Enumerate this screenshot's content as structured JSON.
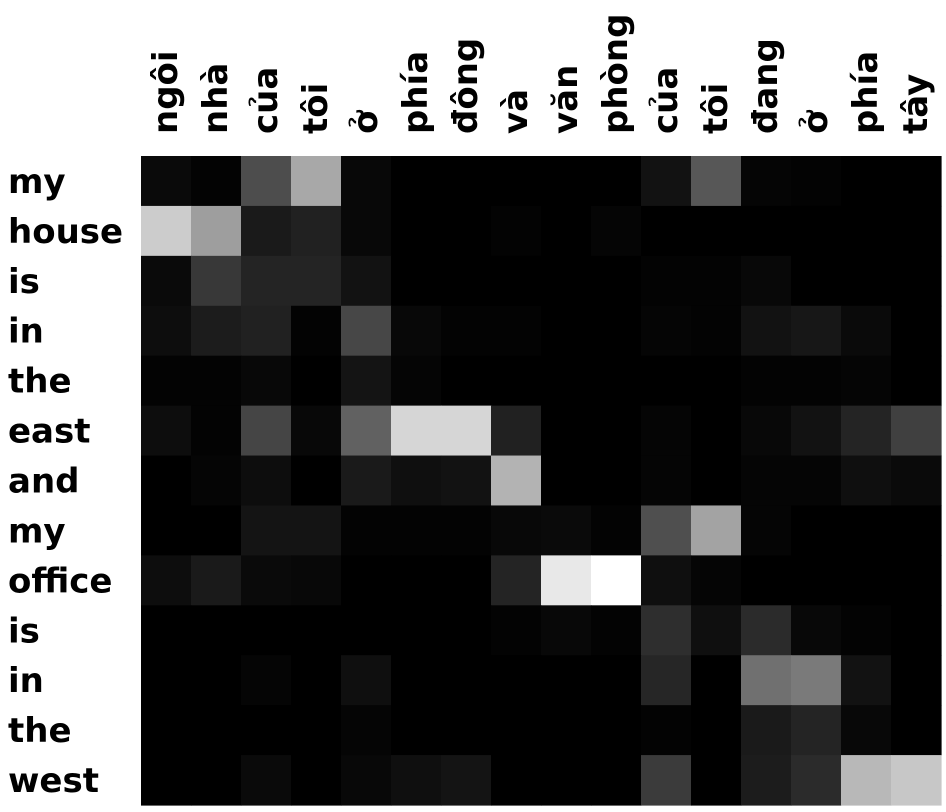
{
  "chart_data": {
    "type": "heatmap",
    "x_labels": [
      "ngôi",
      "nhà",
      "của",
      "tôi",
      "ở",
      "phía",
      "đông",
      "và",
      "văn",
      "phòng",
      "của",
      "tôi",
      "đang",
      "ở",
      "phía",
      "tây"
    ],
    "y_labels": [
      "my",
      "house",
      "is",
      "in",
      "the",
      "east",
      "and",
      "my",
      "office",
      "is",
      "in",
      "the",
      "west"
    ],
    "values": [
      [
        0.04,
        0.01,
        0.3,
        0.66,
        0.03,
        0.0,
        0.0,
        0.0,
        0.0,
        0.0,
        0.07,
        0.34,
        0.02,
        0.01,
        0.0,
        0.0
      ],
      [
        0.8,
        0.62,
        0.1,
        0.13,
        0.03,
        0.0,
        0.0,
        0.01,
        0.0,
        0.02,
        0.0,
        0.0,
        0.0,
        0.0,
        0.0,
        0.0
      ],
      [
        0.04,
        0.22,
        0.14,
        0.14,
        0.07,
        0.0,
        0.0,
        0.0,
        0.0,
        0.0,
        0.01,
        0.01,
        0.03,
        0.0,
        0.0,
        0.0
      ],
      [
        0.05,
        0.11,
        0.13,
        0.01,
        0.28,
        0.03,
        0.01,
        0.01,
        0.0,
        0.0,
        0.02,
        0.01,
        0.07,
        0.09,
        0.04,
        0.0
      ],
      [
        0.01,
        0.01,
        0.03,
        0.0,
        0.08,
        0.02,
        0.0,
        0.0,
        0.0,
        0.0,
        0.0,
        0.0,
        0.01,
        0.01,
        0.02,
        0.0
      ],
      [
        0.05,
        0.01,
        0.27,
        0.03,
        0.38,
        0.84,
        0.84,
        0.13,
        0.0,
        0.0,
        0.02,
        0.0,
        0.03,
        0.07,
        0.14,
        0.25
      ],
      [
        0.0,
        0.02,
        0.05,
        0.0,
        0.1,
        0.06,
        0.07,
        0.7,
        0.0,
        0.0,
        0.02,
        0.0,
        0.02,
        0.02,
        0.06,
        0.04
      ],
      [
        0.0,
        0.0,
        0.08,
        0.08,
        0.01,
        0.01,
        0.01,
        0.03,
        0.04,
        0.01,
        0.31,
        0.64,
        0.02,
        0.0,
        0.0,
        0.0
      ],
      [
        0.05,
        0.1,
        0.04,
        0.03,
        0.0,
        0.0,
        0.0,
        0.14,
        0.91,
        1.0,
        0.06,
        0.02,
        0.0,
        0.0,
        0.0,
        0.0
      ],
      [
        0.0,
        0.0,
        0.0,
        0.0,
        0.0,
        0.0,
        0.0,
        0.01,
        0.03,
        0.01,
        0.18,
        0.06,
        0.17,
        0.03,
        0.01,
        0.0
      ],
      [
        0.0,
        0.0,
        0.02,
        0.0,
        0.06,
        0.0,
        0.0,
        0.0,
        0.0,
        0.0,
        0.15,
        0.0,
        0.44,
        0.48,
        0.07,
        0.0
      ],
      [
        0.0,
        0.0,
        0.0,
        0.0,
        0.02,
        0.0,
        0.0,
        0.0,
        0.0,
        0.0,
        0.01,
        0.0,
        0.1,
        0.14,
        0.03,
        0.0
      ],
      [
        0.0,
        0.0,
        0.04,
        0.0,
        0.03,
        0.06,
        0.08,
        0.0,
        0.0,
        0.0,
        0.23,
        0.0,
        0.11,
        0.17,
        0.72,
        0.78
      ]
    ],
    "color_scale": {
      "low": "#000000",
      "high": "#ffffff"
    },
    "colorbar": false,
    "grid": false
  }
}
